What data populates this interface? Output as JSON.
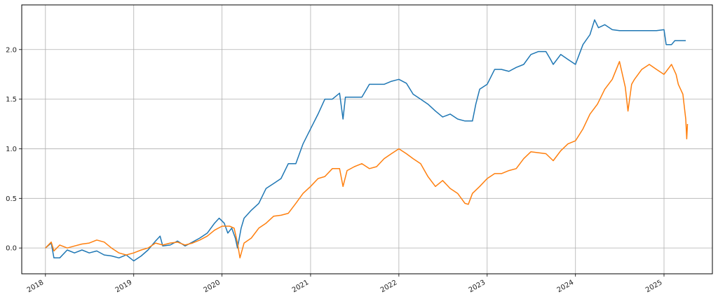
{
  "chart_data": {
    "type": "line",
    "title": "",
    "xlabel": "",
    "ylabel": "",
    "xlim": [
      "2017-09-25",
      "2025-07-20"
    ],
    "ylim": [
      -0.26,
      2.45
    ],
    "grid": true,
    "x_ticks": [
      "2018-01-01",
      "2019-01-01",
      "2020-01-01",
      "2021-01-01",
      "2022-01-01",
      "2023-01-01",
      "2024-01-01",
      "2025-01-01"
    ],
    "x_tick_labels": [
      "2018",
      "2019",
      "2020",
      "2021",
      "2022",
      "2023",
      "2024",
      "2025"
    ],
    "y_ticks": [
      0.0,
      0.5,
      1.0,
      1.5,
      2.0
    ],
    "y_tick_labels": [
      "0.0",
      "0.5",
      "1.0",
      "1.5",
      "2.0"
    ],
    "series": [
      {
        "color": "#1f77b4",
        "points": [
          [
            "2018-01-01",
            0.0
          ],
          [
            "2018-01-25",
            0.05
          ],
          [
            "2018-02-05",
            -0.1
          ],
          [
            "2018-03-01",
            -0.1
          ],
          [
            "2018-04-01",
            -0.02
          ],
          [
            "2018-05-01",
            -0.05
          ],
          [
            "2018-06-01",
            -0.02
          ],
          [
            "2018-07-01",
            -0.05
          ],
          [
            "2018-08-01",
            -0.03
          ],
          [
            "2018-09-01",
            -0.07
          ],
          [
            "2018-10-01",
            -0.08
          ],
          [
            "2018-11-01",
            -0.1
          ],
          [
            "2018-12-01",
            -0.07
          ],
          [
            "2019-01-01",
            -0.13
          ],
          [
            "2019-02-01",
            -0.08
          ],
          [
            "2019-03-01",
            -0.02
          ],
          [
            "2019-04-01",
            0.07
          ],
          [
            "2019-04-20",
            0.12
          ],
          [
            "2019-05-01",
            0.02
          ],
          [
            "2019-06-01",
            0.03
          ],
          [
            "2019-07-01",
            0.07
          ],
          [
            "2019-08-01",
            0.02
          ],
          [
            "2019-09-01",
            0.06
          ],
          [
            "2019-10-01",
            0.1
          ],
          [
            "2019-11-01",
            0.15
          ],
          [
            "2019-12-01",
            0.25
          ],
          [
            "2019-12-20",
            0.3
          ],
          [
            "2020-01-10",
            0.25
          ],
          [
            "2020-01-25",
            0.15
          ],
          [
            "2020-02-10",
            0.2
          ],
          [
            "2020-02-25",
            0.1
          ],
          [
            "2020-03-05",
            0.0
          ],
          [
            "2020-03-20",
            0.2
          ],
          [
            "2020-04-01",
            0.3
          ],
          [
            "2020-05-01",
            0.38
          ],
          [
            "2020-06-01",
            0.45
          ],
          [
            "2020-07-01",
            0.6
          ],
          [
            "2020-08-01",
            0.65
          ],
          [
            "2020-09-01",
            0.7
          ],
          [
            "2020-10-01",
            0.85
          ],
          [
            "2020-11-01",
            0.85
          ],
          [
            "2020-12-01",
            1.05
          ],
          [
            "2021-01-01",
            1.2
          ],
          [
            "2021-02-01",
            1.35
          ],
          [
            "2021-03-01",
            1.5
          ],
          [
            "2021-04-01",
            1.5
          ],
          [
            "2021-05-01",
            1.56
          ],
          [
            "2021-05-15",
            1.3
          ],
          [
            "2021-05-25",
            1.52
          ],
          [
            "2021-07-01",
            1.52
          ],
          [
            "2021-08-01",
            1.52
          ],
          [
            "2021-09-01",
            1.65
          ],
          [
            "2021-10-01",
            1.65
          ],
          [
            "2021-11-01",
            1.65
          ],
          [
            "2021-12-01",
            1.68
          ],
          [
            "2022-01-01",
            1.7
          ],
          [
            "2022-02-01",
            1.66
          ],
          [
            "2022-03-01",
            1.55
          ],
          [
            "2022-04-01",
            1.5
          ],
          [
            "2022-05-01",
            1.45
          ],
          [
            "2022-06-01",
            1.38
          ],
          [
            "2022-07-01",
            1.32
          ],
          [
            "2022-08-01",
            1.35
          ],
          [
            "2022-09-01",
            1.3
          ],
          [
            "2022-10-01",
            1.28
          ],
          [
            "2022-11-01",
            1.28
          ],
          [
            "2022-11-15",
            1.45
          ],
          [
            "2022-12-01",
            1.6
          ],
          [
            "2023-01-01",
            1.65
          ],
          [
            "2023-02-01",
            1.8
          ],
          [
            "2023-03-01",
            1.8
          ],
          [
            "2023-04-01",
            1.78
          ],
          [
            "2023-05-01",
            1.82
          ],
          [
            "2023-06-01",
            1.85
          ],
          [
            "2023-07-01",
            1.95
          ],
          [
            "2023-08-01",
            1.98
          ],
          [
            "2023-09-01",
            1.98
          ],
          [
            "2023-09-20",
            1.9
          ],
          [
            "2023-10-01",
            1.85
          ],
          [
            "2023-11-01",
            1.95
          ],
          [
            "2023-12-01",
            1.9
          ],
          [
            "2024-01-01",
            1.85
          ],
          [
            "2024-02-01",
            2.05
          ],
          [
            "2024-03-01",
            2.15
          ],
          [
            "2024-03-20",
            2.3
          ],
          [
            "2024-04-05",
            2.22
          ],
          [
            "2024-05-01",
            2.25
          ],
          [
            "2024-06-01",
            2.2
          ],
          [
            "2024-07-01",
            2.19
          ],
          [
            "2024-08-01",
            2.19
          ],
          [
            "2024-09-01",
            2.19
          ],
          [
            "2024-10-01",
            2.19
          ],
          [
            "2024-11-01",
            2.19
          ],
          [
            "2024-12-01",
            2.19
          ],
          [
            "2025-01-01",
            2.2
          ],
          [
            "2025-01-10",
            2.05
          ],
          [
            "2025-02-01",
            2.05
          ],
          [
            "2025-02-15",
            2.09
          ],
          [
            "2025-03-01",
            2.09
          ],
          [
            "2025-04-01",
            2.09
          ]
        ]
      },
      {
        "color": "#ff7f0e",
        "points": [
          [
            "2018-01-01",
            0.0
          ],
          [
            "2018-01-25",
            0.06
          ],
          [
            "2018-02-05",
            -0.03
          ],
          [
            "2018-03-01",
            0.03
          ],
          [
            "2018-04-01",
            0.0
          ],
          [
            "2018-05-01",
            0.02
          ],
          [
            "2018-06-01",
            0.04
          ],
          [
            "2018-07-01",
            0.05
          ],
          [
            "2018-08-01",
            0.08
          ],
          [
            "2018-09-01",
            0.06
          ],
          [
            "2018-10-01",
            0.0
          ],
          [
            "2018-11-01",
            -0.05
          ],
          [
            "2018-12-01",
            -0.07
          ],
          [
            "2019-01-01",
            -0.05
          ],
          [
            "2019-02-01",
            -0.02
          ],
          [
            "2019-03-01",
            0.0
          ],
          [
            "2019-04-01",
            0.05
          ],
          [
            "2019-05-01",
            0.03
          ],
          [
            "2019-06-01",
            0.05
          ],
          [
            "2019-07-01",
            0.06
          ],
          [
            "2019-08-01",
            0.03
          ],
          [
            "2019-09-01",
            0.05
          ],
          [
            "2019-10-01",
            0.08
          ],
          [
            "2019-11-01",
            0.12
          ],
          [
            "2019-12-01",
            0.18
          ],
          [
            "2020-01-01",
            0.22
          ],
          [
            "2020-02-01",
            0.22
          ],
          [
            "2020-02-20",
            0.2
          ],
          [
            "2020-03-05",
            0.05
          ],
          [
            "2020-03-15",
            -0.1
          ],
          [
            "2020-04-01",
            0.05
          ],
          [
            "2020-05-01",
            0.1
          ],
          [
            "2020-06-01",
            0.2
          ],
          [
            "2020-07-01",
            0.25
          ],
          [
            "2020-08-01",
            0.32
          ],
          [
            "2020-09-01",
            0.33
          ],
          [
            "2020-10-01",
            0.35
          ],
          [
            "2020-11-01",
            0.45
          ],
          [
            "2020-12-01",
            0.55
          ],
          [
            "2021-01-01",
            0.62
          ],
          [
            "2021-02-01",
            0.7
          ],
          [
            "2021-03-01",
            0.72
          ],
          [
            "2021-04-01",
            0.8
          ],
          [
            "2021-05-01",
            0.8
          ],
          [
            "2021-05-15",
            0.62
          ],
          [
            "2021-06-01",
            0.78
          ],
          [
            "2021-07-01",
            0.82
          ],
          [
            "2021-08-01",
            0.85
          ],
          [
            "2021-09-01",
            0.8
          ],
          [
            "2021-10-01",
            0.82
          ],
          [
            "2021-11-01",
            0.9
          ],
          [
            "2021-12-01",
            0.95
          ],
          [
            "2022-01-01",
            1.0
          ],
          [
            "2022-02-01",
            0.95
          ],
          [
            "2022-03-01",
            0.9
          ],
          [
            "2022-04-01",
            0.85
          ],
          [
            "2022-05-01",
            0.72
          ],
          [
            "2022-06-01",
            0.62
          ],
          [
            "2022-07-01",
            0.68
          ],
          [
            "2022-08-01",
            0.6
          ],
          [
            "2022-09-01",
            0.55
          ],
          [
            "2022-10-01",
            0.45
          ],
          [
            "2022-10-15",
            0.44
          ],
          [
            "2022-11-01",
            0.55
          ],
          [
            "2022-12-01",
            0.62
          ],
          [
            "2023-01-01",
            0.7
          ],
          [
            "2023-02-01",
            0.75
          ],
          [
            "2023-03-01",
            0.75
          ],
          [
            "2023-04-01",
            0.78
          ],
          [
            "2023-05-01",
            0.8
          ],
          [
            "2023-06-01",
            0.9
          ],
          [
            "2023-07-01",
            0.97
          ],
          [
            "2023-08-01",
            0.96
          ],
          [
            "2023-09-01",
            0.95
          ],
          [
            "2023-10-01",
            0.88
          ],
          [
            "2023-11-01",
            0.98
          ],
          [
            "2023-12-01",
            1.05
          ],
          [
            "2024-01-01",
            1.08
          ],
          [
            "2024-02-01",
            1.2
          ],
          [
            "2024-03-01",
            1.35
          ],
          [
            "2024-04-01",
            1.45
          ],
          [
            "2024-05-01",
            1.6
          ],
          [
            "2024-06-01",
            1.7
          ],
          [
            "2024-07-01",
            1.88
          ],
          [
            "2024-07-25",
            1.62
          ],
          [
            "2024-08-05",
            1.38
          ],
          [
            "2024-08-20",
            1.65
          ],
          [
            "2024-09-01",
            1.7
          ],
          [
            "2024-10-01",
            1.8
          ],
          [
            "2024-11-01",
            1.85
          ],
          [
            "2024-12-01",
            1.8
          ],
          [
            "2025-01-01",
            1.75
          ],
          [
            "2025-02-01",
            1.85
          ],
          [
            "2025-02-20",
            1.75
          ],
          [
            "2025-03-01",
            1.65
          ],
          [
            "2025-03-20",
            1.55
          ],
          [
            "2025-04-01",
            1.3
          ],
          [
            "2025-04-05",
            1.1
          ],
          [
            "2025-04-08",
            1.25
          ]
        ]
      }
    ]
  }
}
